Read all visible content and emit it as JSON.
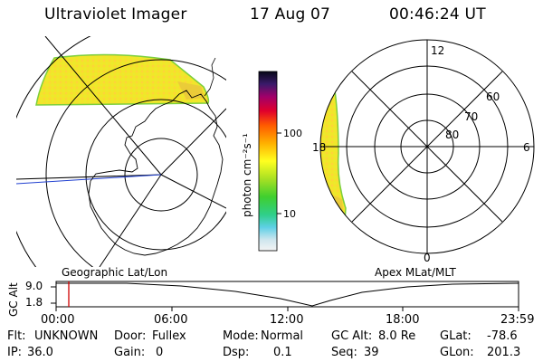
{
  "header": {
    "instrument": "Ultraviolet Imager",
    "date": "17 Aug 07",
    "time": "00:46:24 UT"
  },
  "colorbar": {
    "unit_label": "photon cm⁻²s⁻¹",
    "ticks": [
      "100",
      "10"
    ]
  },
  "polar_plot": {
    "lat_labels": [
      "60",
      "70",
      "80"
    ],
    "mlt_labels": {
      "top": "12",
      "left": "18",
      "right": "6",
      "bottom": "0"
    }
  },
  "labels": {
    "left_map": "Geographic Lat/Lon",
    "right_map": "Apex MLat/MLT"
  },
  "altitude_plot": {
    "ylabel": "GC Alt",
    "yticks": [
      "9.0",
      "1.8"
    ],
    "xticks": [
      "00:00",
      "06:00",
      "12:00",
      "18:00",
      "23:59"
    ]
  },
  "status": {
    "row1": {
      "flt_label": "Flt:",
      "flt_value": "UNKNOWN",
      "door_label": "Door:",
      "door_value": "Fullex",
      "mode_label": "Mode:",
      "mode_value": "Normal",
      "gcalt_label": "GC Alt:",
      "gcalt_value": "8.0 Re",
      "glat_label": "GLat:",
      "glat_value": "-78.6"
    },
    "row2": {
      "ip_label": "IP:",
      "ip_value": "36.0",
      "gain_label": "Gain:",
      "gain_value": "0",
      "dsp_label": "Dsp:",
      "dsp_value": "0.1",
      "seq_label": "Seq:",
      "seq_value": "39",
      "glon_label": "GLon:",
      "glon_value": "201.3"
    }
  },
  "colors": {
    "auroral_fill": "#f2e52a",
    "auroral_edge": "#7ccf3c",
    "marker": "#d00000",
    "meridian": "#1f3fd0"
  }
}
